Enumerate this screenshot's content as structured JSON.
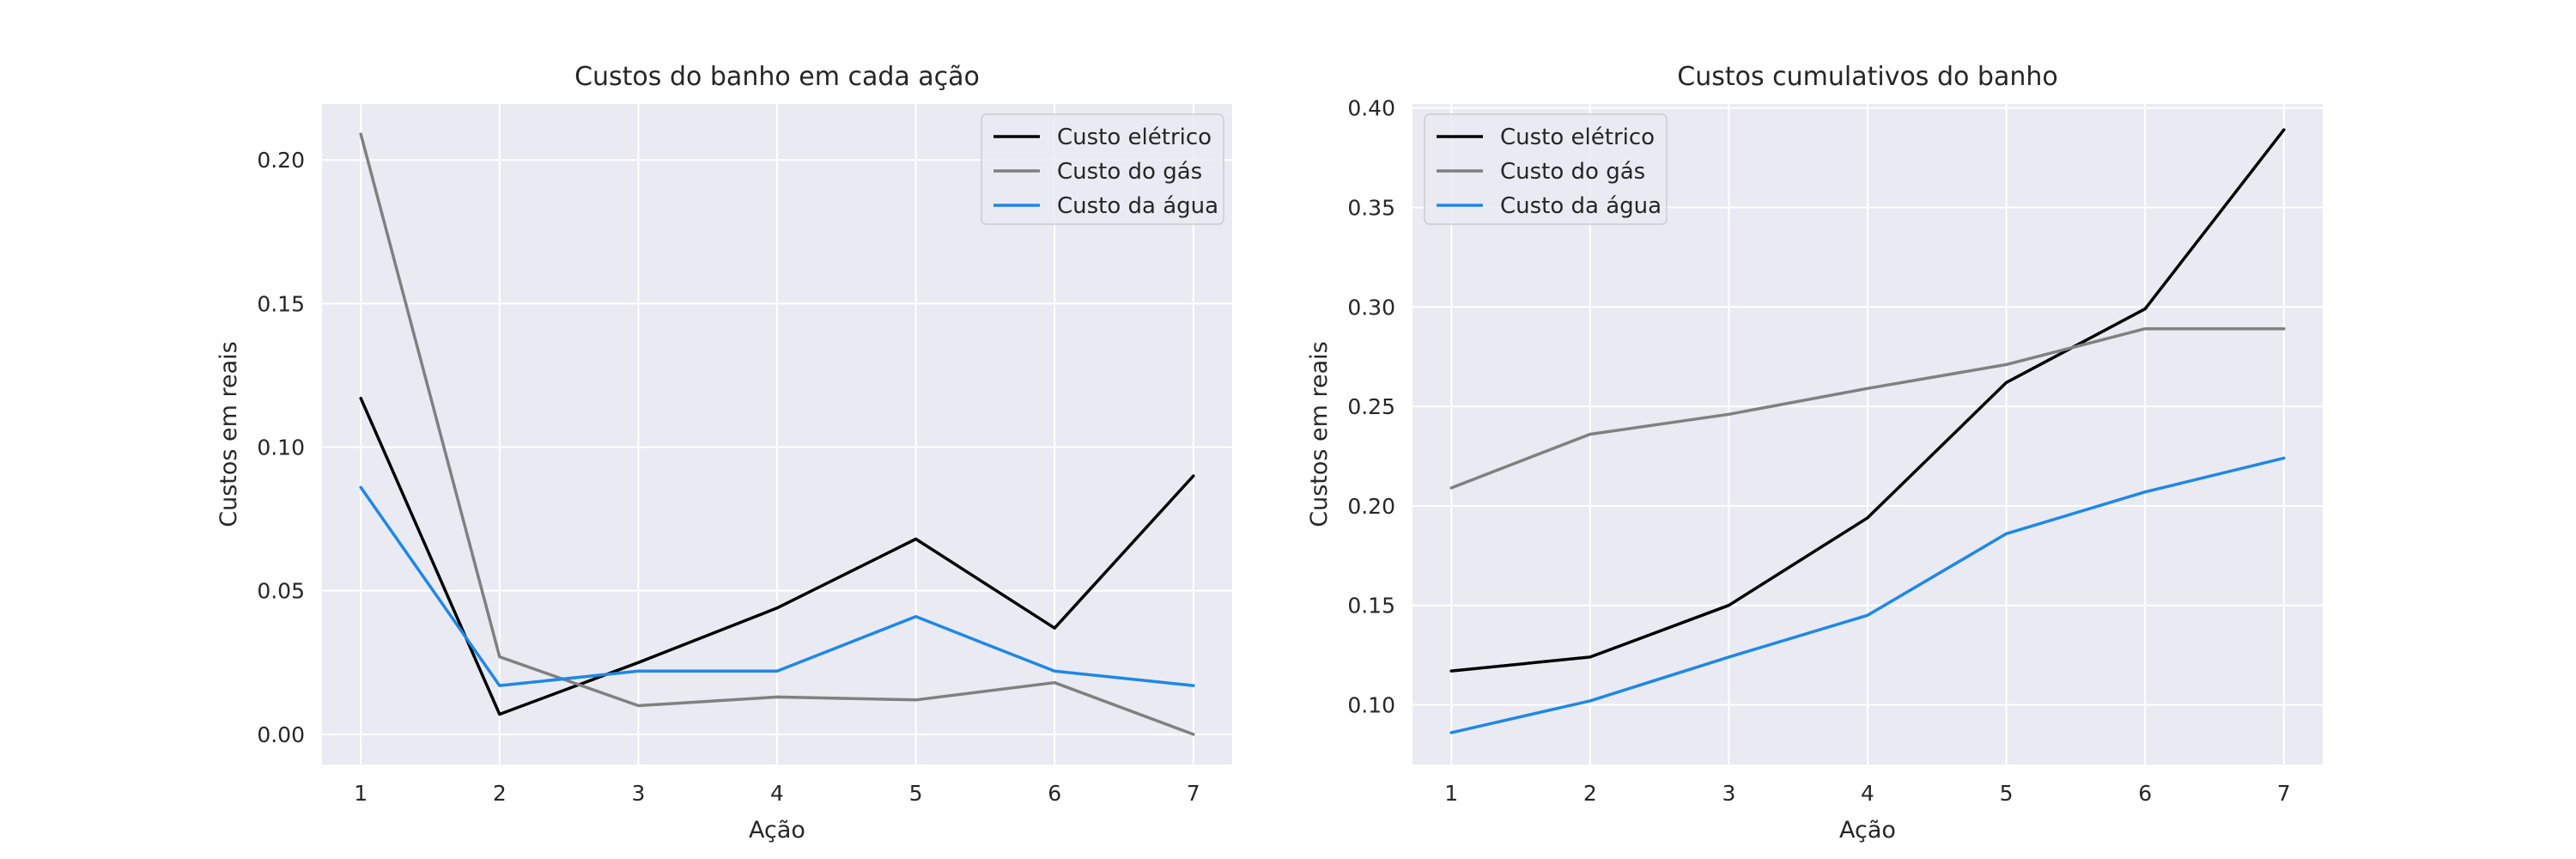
{
  "chart_data": [
    {
      "type": "line",
      "title": "Custos do banho em cada ação",
      "xlabel": "Ação",
      "ylabel": "Custos em reais",
      "x": [
        1,
        2,
        3,
        4,
        5,
        6,
        7
      ],
      "xlim": [
        0.72,
        7.28
      ],
      "ylim": [
        -0.0105,
        0.2195
      ],
      "xticks": [
        "1",
        "2",
        "3",
        "4",
        "5",
        "6",
        "7"
      ],
      "yticks": [
        "0.00",
        "0.05",
        "0.10",
        "0.15",
        "0.20"
      ],
      "yticks_values": [
        0,
        0.05,
        0.1,
        0.15,
        0.2
      ],
      "grid": true,
      "legend": "upper right",
      "series": [
        {
          "name": "Custo elétrico",
          "color": "#000000",
          "values": [
            0.117,
            0.007,
            0.025,
            0.044,
            0.068,
            0.037,
            0.09
          ]
        },
        {
          "name": "Custo do gás",
          "color": "#808080",
          "values": [
            0.209,
            0.027,
            0.01,
            0.013,
            0.012,
            0.018,
            0.0
          ]
        },
        {
          "name": "Custo da água",
          "color": "#1e88e5",
          "values": [
            0.086,
            0.017,
            0.022,
            0.022,
            0.041,
            0.022,
            0.017
          ]
        }
      ]
    },
    {
      "type": "line",
      "title": "Custos cumulativos do banho",
      "xlabel": "Ação",
      "ylabel": "Custos em reais",
      "x": [
        1,
        2,
        3,
        4,
        5,
        6,
        7
      ],
      "xlim": [
        0.72,
        7.28
      ],
      "ylim": [
        0.07,
        0.402
      ],
      "xticks": [
        "1",
        "2",
        "3",
        "4",
        "5",
        "6",
        "7"
      ],
      "yticks": [
        "0.10",
        "0.15",
        "0.20",
        "0.25",
        "0.30",
        "0.35",
        "0.40"
      ],
      "yticks_values": [
        0.1,
        0.15,
        0.2,
        0.25,
        0.3,
        0.35,
        0.4
      ],
      "grid": true,
      "legend": "upper left",
      "series": [
        {
          "name": "Custo elétrico",
          "color": "#000000",
          "values": [
            0.117,
            0.124,
            0.15,
            0.194,
            0.262,
            0.299,
            0.389
          ]
        },
        {
          "name": "Custo do gás",
          "color": "#808080",
          "values": [
            0.209,
            0.236,
            0.246,
            0.259,
            0.271,
            0.289,
            0.289
          ]
        },
        {
          "name": "Custo da água",
          "color": "#1e88e5",
          "values": [
            0.086,
            0.102,
            0.124,
            0.145,
            0.186,
            0.207,
            0.224
          ]
        }
      ]
    }
  ]
}
